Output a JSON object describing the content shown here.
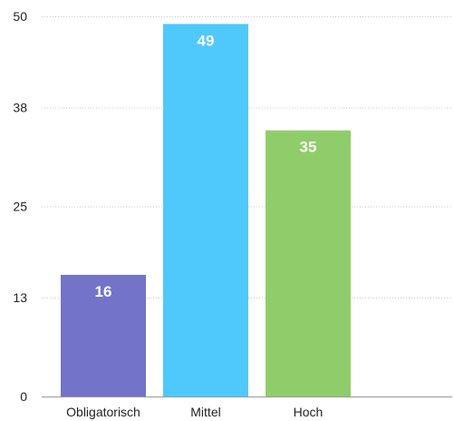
{
  "chart_data": {
    "type": "bar",
    "title": "",
    "xlabel": "",
    "ylabel": "",
    "categories": [
      "Obligatorisch",
      "Mittel",
      "Hoch"
    ],
    "values": [
      16,
      49,
      35
    ],
    "value_labels": [
      "16",
      "49",
      "35"
    ],
    "colors": [
      "#7273c9",
      "#4fc9fb",
      "#8fcd6a"
    ],
    "ylim": [
      0,
      50
    ],
    "yticks": [
      0,
      13,
      25,
      38,
      50
    ],
    "ytick_labels": [
      "0",
      "13",
      "25",
      "38",
      "50"
    ],
    "grid": true,
    "legend": "none"
  }
}
